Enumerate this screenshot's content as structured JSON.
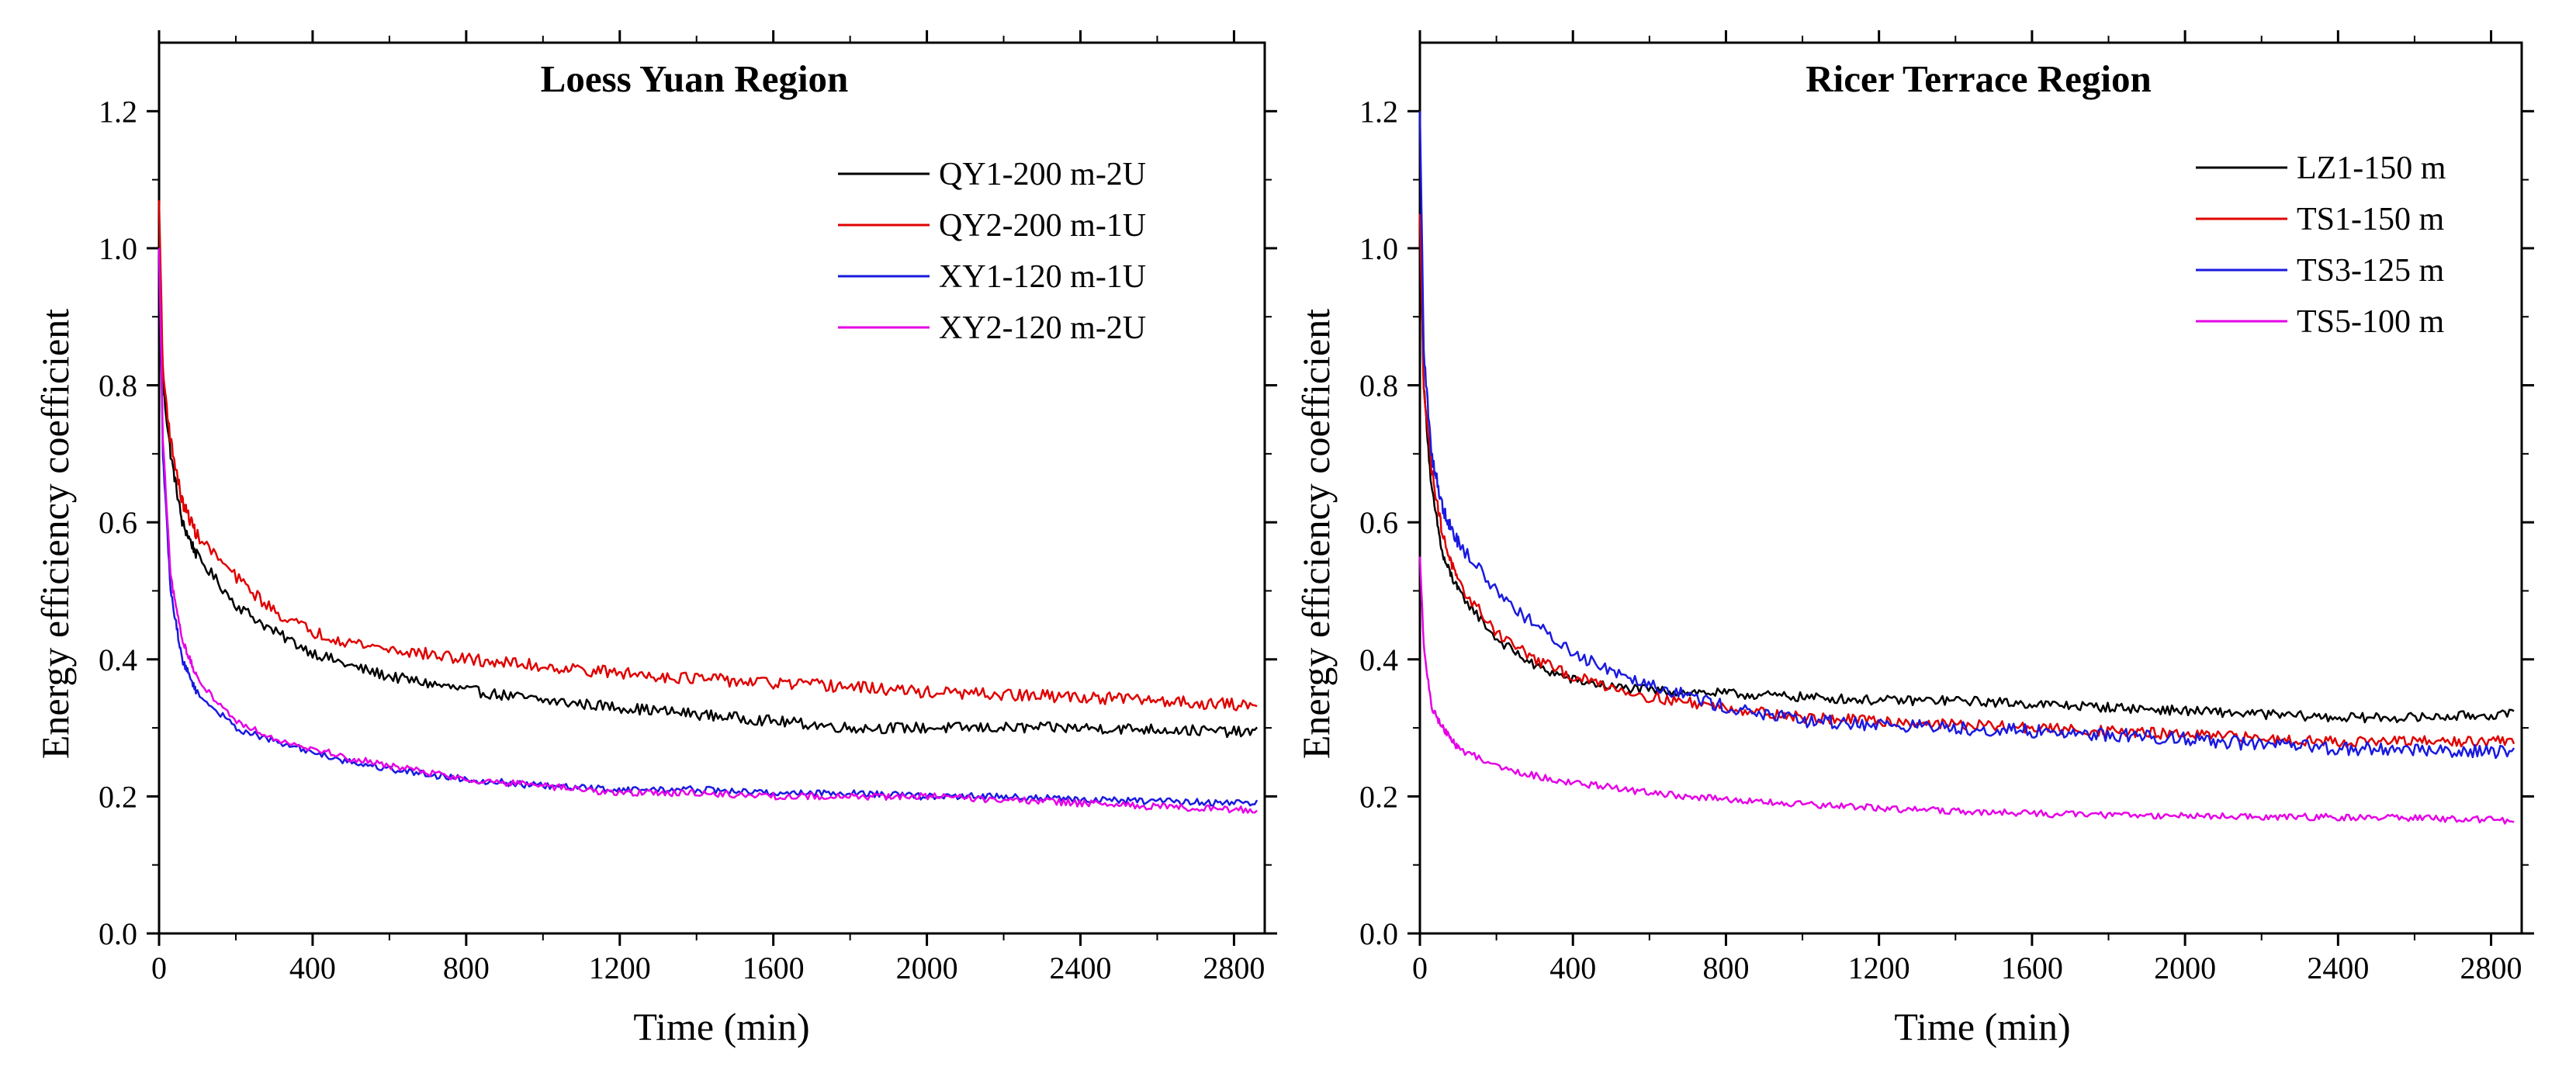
{
  "chart_data": [
    {
      "type": "line",
      "title": "Loess Yuan Region",
      "xlabel": "Time (min)",
      "ylabel": "Energy efficiency coefficient",
      "xlim": [
        0,
        2880
      ],
      "ylim": [
        0,
        1.3
      ],
      "xticks": [
        "0",
        "400",
        "800",
        "1200",
        "1600",
        "2000",
        "2400",
        "2800"
      ],
      "yticks": [
        "0.0",
        "0.2",
        "0.4",
        "0.6",
        "0.8",
        "1.0",
        "1.2"
      ],
      "legend_position": "top-right",
      "series": [
        {
          "name": "QY1-200 m-2U",
          "color": "#000000",
          "noise": 0.008,
          "points": [
            [
              0,
              1.02
            ],
            [
              10,
              0.8
            ],
            [
              30,
              0.7
            ],
            [
              60,
              0.6
            ],
            [
              100,
              0.55
            ],
            [
              200,
              0.48
            ],
            [
              300,
              0.44
            ],
            [
              400,
              0.41
            ],
            [
              500,
              0.39
            ],
            [
              600,
              0.375
            ],
            [
              800,
              0.355
            ],
            [
              1000,
              0.34
            ],
            [
              1200,
              0.33
            ],
            [
              1400,
              0.32
            ],
            [
              1600,
              0.31
            ],
            [
              1800,
              0.3
            ],
            [
              2000,
              0.3
            ],
            [
              2200,
              0.3
            ],
            [
              2400,
              0.3
            ],
            [
              2600,
              0.298
            ],
            [
              2860,
              0.293
            ]
          ]
        },
        {
          "name": "QY2-200 m-1U",
          "color": "#e00000",
          "noise": 0.009,
          "points": [
            [
              0,
              1.07
            ],
            [
              10,
              0.82
            ],
            [
              30,
              0.72
            ],
            [
              60,
              0.63
            ],
            [
              100,
              0.58
            ],
            [
              200,
              0.52
            ],
            [
              300,
              0.47
            ],
            [
              400,
              0.44
            ],
            [
              500,
              0.425
            ],
            [
              600,
              0.415
            ],
            [
              800,
              0.4
            ],
            [
              1000,
              0.39
            ],
            [
              1200,
              0.38
            ],
            [
              1400,
              0.372
            ],
            [
              1600,
              0.365
            ],
            [
              1800,
              0.36
            ],
            [
              2000,
              0.352
            ],
            [
              2200,
              0.348
            ],
            [
              2400,
              0.345
            ],
            [
              2600,
              0.34
            ],
            [
              2860,
              0.332
            ]
          ]
        },
        {
          "name": "XY1-120 m-1U",
          "color": "#1a1ae0",
          "noise": 0.005,
          "points": [
            [
              0,
              1.0
            ],
            [
              10,
              0.7
            ],
            [
              30,
              0.5
            ],
            [
              60,
              0.4
            ],
            [
              100,
              0.35
            ],
            [
              200,
              0.3
            ],
            [
              300,
              0.28
            ],
            [
              400,
              0.265
            ],
            [
              500,
              0.25
            ],
            [
              600,
              0.24
            ],
            [
              800,
              0.225
            ],
            [
              1000,
              0.215
            ],
            [
              1200,
              0.21
            ],
            [
              1400,
              0.21
            ],
            [
              1600,
              0.205
            ],
            [
              1800,
              0.205
            ],
            [
              2000,
              0.2
            ],
            [
              2200,
              0.2
            ],
            [
              2400,
              0.195
            ],
            [
              2600,
              0.193
            ],
            [
              2860,
              0.19
            ]
          ]
        },
        {
          "name": "XY2-120 m-2U",
          "color": "#e600e6",
          "noise": 0.005,
          "points": [
            [
              0,
              1.0
            ],
            [
              10,
              0.72
            ],
            [
              30,
              0.52
            ],
            [
              60,
              0.43
            ],
            [
              100,
              0.37
            ],
            [
              200,
              0.31
            ],
            [
              300,
              0.285
            ],
            [
              400,
              0.27
            ],
            [
              500,
              0.255
            ],
            [
              600,
              0.245
            ],
            [
              800,
              0.225
            ],
            [
              1000,
              0.215
            ],
            [
              1200,
              0.205
            ],
            [
              1400,
              0.205
            ],
            [
              1600,
              0.2
            ],
            [
              1800,
              0.2
            ],
            [
              2000,
              0.2
            ],
            [
              2200,
              0.195
            ],
            [
              2400,
              0.19
            ],
            [
              2600,
              0.185
            ],
            [
              2860,
              0.18
            ]
          ]
        }
      ]
    },
    {
      "type": "line",
      "title": "Ricer Terrace Region",
      "xlabel": "Time (min)",
      "ylabel": "Energy efficiency coefficient",
      "xlim": [
        0,
        2880
      ],
      "ylim": [
        0,
        1.3
      ],
      "xticks": [
        "0",
        "400",
        "800",
        "1200",
        "1600",
        "2000",
        "2400",
        "2800"
      ],
      "yticks": [
        "0.0",
        "0.2",
        "0.4",
        "0.6",
        "0.8",
        "1.0",
        "1.2"
      ],
      "legend_position": "top-right",
      "series": [
        {
          "name": "LZ1-150 m",
          "color": "#000000",
          "noise": 0.007,
          "points": [
            [
              0,
              1.05
            ],
            [
              10,
              0.8
            ],
            [
              30,
              0.65
            ],
            [
              60,
              0.55
            ],
            [
              100,
              0.5
            ],
            [
              200,
              0.43
            ],
            [
              300,
              0.39
            ],
            [
              400,
              0.37
            ],
            [
              500,
              0.36
            ],
            [
              600,
              0.355
            ],
            [
              800,
              0.35
            ],
            [
              1000,
              0.345
            ],
            [
              1200,
              0.34
            ],
            [
              1400,
              0.34
            ],
            [
              1600,
              0.335
            ],
            [
              1800,
              0.33
            ],
            [
              2000,
              0.325
            ],
            [
              2200,
              0.32
            ],
            [
              2400,
              0.315
            ],
            [
              2600,
              0.315
            ],
            [
              2860,
              0.32
            ]
          ]
        },
        {
          "name": "TS1-150 m",
          "color": "#e00000",
          "noise": 0.008,
          "points": [
            [
              0,
              1.05
            ],
            [
              10,
              0.8
            ],
            [
              30,
              0.68
            ],
            [
              60,
              0.58
            ],
            [
              100,
              0.51
            ],
            [
              200,
              0.44
            ],
            [
              300,
              0.4
            ],
            [
              400,
              0.375
            ],
            [
              500,
              0.36
            ],
            [
              600,
              0.345
            ],
            [
              800,
              0.33
            ],
            [
              1000,
              0.315
            ],
            [
              1200,
              0.31
            ],
            [
              1400,
              0.305
            ],
            [
              1600,
              0.3
            ],
            [
              1800,
              0.295
            ],
            [
              2000,
              0.29
            ],
            [
              2200,
              0.285
            ],
            [
              2400,
              0.28
            ],
            [
              2600,
              0.28
            ],
            [
              2860,
              0.28
            ]
          ]
        },
        {
          "name": "TS3-125 m",
          "color": "#1a1ae0",
          "noise": 0.01,
          "points": [
            [
              0,
              1.2
            ],
            [
              10,
              0.85
            ],
            [
              30,
              0.7
            ],
            [
              60,
              0.62
            ],
            [
              100,
              0.57
            ],
            [
              200,
              0.5
            ],
            [
              300,
              0.45
            ],
            [
              400,
              0.41
            ],
            [
              500,
              0.385
            ],
            [
              600,
              0.365
            ],
            [
              800,
              0.33
            ],
            [
              1000,
              0.31
            ],
            [
              1200,
              0.305
            ],
            [
              1400,
              0.3
            ],
            [
              1600,
              0.295
            ],
            [
              1800,
              0.29
            ],
            [
              2000,
              0.285
            ],
            [
              2200,
              0.275
            ],
            [
              2400,
              0.27
            ],
            [
              2600,
              0.268
            ],
            [
              2860,
              0.265
            ]
          ]
        },
        {
          "name": "TS5-100 m",
          "color": "#e600e6",
          "noise": 0.005,
          "points": [
            [
              0,
              0.55
            ],
            [
              10,
              0.42
            ],
            [
              30,
              0.33
            ],
            [
              60,
              0.3
            ],
            [
              100,
              0.27
            ],
            [
              200,
              0.245
            ],
            [
              300,
              0.23
            ],
            [
              400,
              0.22
            ],
            [
              500,
              0.213
            ],
            [
              600,
              0.205
            ],
            [
              800,
              0.195
            ],
            [
              1000,
              0.188
            ],
            [
              1200,
              0.183
            ],
            [
              1400,
              0.178
            ],
            [
              1600,
              0.175
            ],
            [
              1800,
              0.173
            ],
            [
              2000,
              0.172
            ],
            [
              2200,
              0.17
            ],
            [
              2400,
              0.17
            ],
            [
              2600,
              0.168
            ],
            [
              2860,
              0.165
            ]
          ]
        }
      ]
    }
  ]
}
